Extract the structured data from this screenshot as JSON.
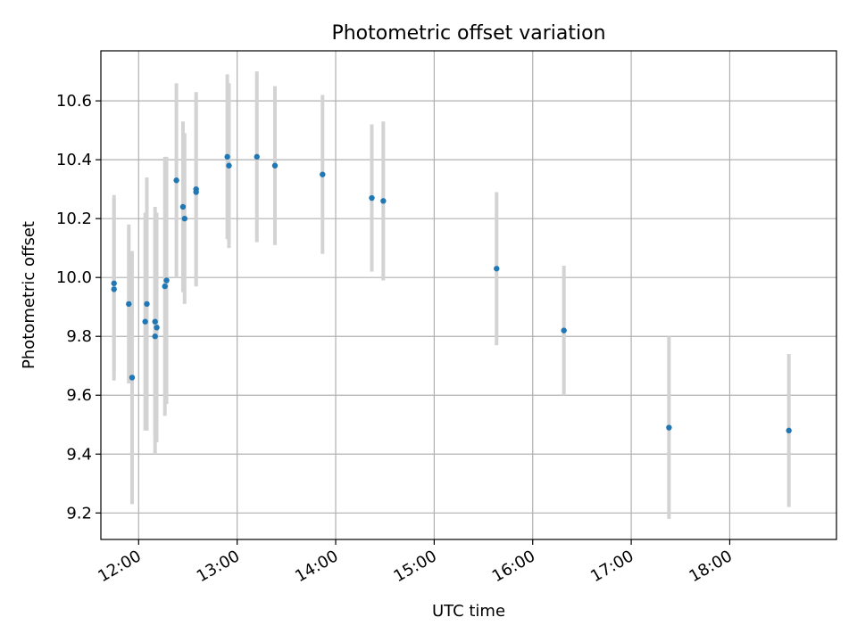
{
  "chart_data": {
    "type": "scatter",
    "title": "Photometric offset variation",
    "xlabel": "UTC time",
    "ylabel": "Photometric offset",
    "x_tick_labels": [
      "12:00",
      "13:00",
      "14:00",
      "15:00",
      "16:00",
      "17:00",
      "18:00"
    ],
    "x_tick_values": [
      "12:00",
      "13:00",
      "14:00",
      "15:00",
      "16:00",
      "17:00",
      "18:00"
    ],
    "y_ticks": [
      9.2,
      9.4,
      9.6,
      9.8,
      10.0,
      10.2,
      10.4,
      10.6
    ],
    "y_tick_labels": [
      "9.2",
      "9.4",
      "9.6",
      "9.8",
      "10.0",
      "10.2",
      "10.4",
      "10.6"
    ],
    "xlim": [
      "11:37",
      "19:05"
    ],
    "ylim": [
      9.11,
      10.77
    ],
    "grid": true,
    "colors": {
      "point": "#1f77b4",
      "errorbar": "#d3d3d3",
      "grid": "#b0b0b0"
    },
    "points": [
      {
        "t": "11:45",
        "y": 9.98,
        "err": 0.3
      },
      {
        "t": "11:45",
        "y": 9.96,
        "err": 0.31
      },
      {
        "t": "11:54",
        "y": 9.91,
        "err": 0.27
      },
      {
        "t": "11:56",
        "y": 9.66,
        "err": 0.43
      },
      {
        "t": "12:05",
        "y": 9.91,
        "err": 0.43
      },
      {
        "t": "12:04",
        "y": 9.85,
        "err": 0.37
      },
      {
        "t": "12:10",
        "y": 9.85,
        "err": 0.39
      },
      {
        "t": "12:10",
        "y": 9.8,
        "err": 0.4
      },
      {
        "t": "12:11",
        "y": 9.83,
        "err": 0.39
      },
      {
        "t": "12:17",
        "y": 9.99,
        "err": 0.42
      },
      {
        "t": "12:16",
        "y": 9.97,
        "err": 0.44
      },
      {
        "t": "12:23",
        "y": 10.33,
        "err": 0.33
      },
      {
        "t": "12:27",
        "y": 10.24,
        "err": 0.29
      },
      {
        "t": "12:28",
        "y": 10.2,
        "err": 0.29
      },
      {
        "t": "12:35",
        "y": 10.3,
        "err": 0.33
      },
      {
        "t": "12:35",
        "y": 10.29,
        "err": 0.32
      },
      {
        "t": "12:54",
        "y": 10.41,
        "err": 0.28
      },
      {
        "t": "12:55",
        "y": 10.38,
        "err": 0.28
      },
      {
        "t": "13:12",
        "y": 10.41,
        "err": 0.29
      },
      {
        "t": "13:23",
        "y": 10.38,
        "err": 0.27
      },
      {
        "t": "13:52",
        "y": 10.35,
        "err": 0.27
      },
      {
        "t": "14:22",
        "y": 10.27,
        "err": 0.25
      },
      {
        "t": "14:29",
        "y": 10.26,
        "err": 0.27
      },
      {
        "t": "15:38",
        "y": 10.03,
        "err": 0.26
      },
      {
        "t": "16:19",
        "y": 9.82,
        "err": 0.22
      },
      {
        "t": "17:23",
        "y": 9.49,
        "err": 0.31
      },
      {
        "t": "18:36",
        "y": 9.48,
        "err": 0.26
      }
    ]
  }
}
